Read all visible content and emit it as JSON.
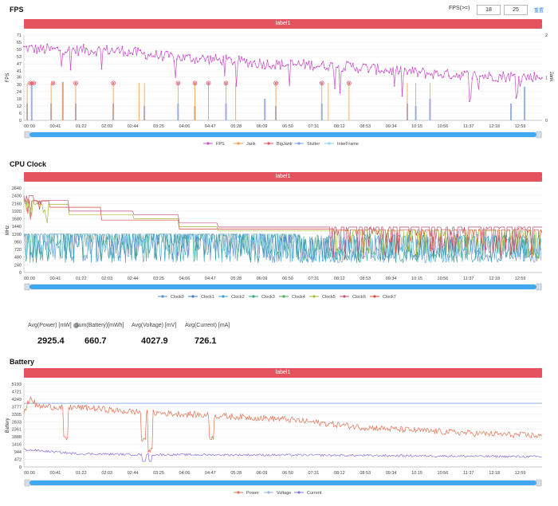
{
  "fps_section": {
    "title": "FPS",
    "threshold_label": "FPS(>=)",
    "threshold_values": [
      "18",
      "25"
    ],
    "reset_label": "重置",
    "label_bar": "label1"
  },
  "cpu_section": {
    "title": "CPU Clock",
    "label_bar": "label1"
  },
  "battery_section": {
    "title": "Battery",
    "label_bar": "label1"
  },
  "stats": [
    {
      "label": "Avg(Power) [mW]",
      "value": "2925.4",
      "help": true
    },
    {
      "label": "Sum(Battery)[mWh]",
      "value": "660.7",
      "help": false
    },
    {
      "label": "Avg(Voltage) [mV]",
      "value": "4027.9",
      "help": false
    },
    {
      "label": "Avg(Current) [mA]",
      "value": "726.1",
      "help": false
    }
  ],
  "x_ticks": [
    "00:00",
    "00:41",
    "01:22",
    "02:03",
    "02:44",
    "03:25",
    "04:06",
    "04:47",
    "05:28",
    "06:09",
    "06:50",
    "07:31",
    "08:12",
    "08:53",
    "09:34",
    "10:15",
    "10:56",
    "11:37",
    "12:18",
    "12:59"
  ],
  "chart_data": [
    {
      "type": "line",
      "title": "FPS",
      "ylabel": "FPS",
      "y2label": "Jank",
      "y_ticks": [
        0,
        6,
        12,
        18,
        24,
        30,
        36,
        41,
        47,
        53,
        59,
        65,
        71
      ],
      "y2_ticks": [
        0,
        1,
        2
      ],
      "ylim": [
        0,
        71
      ],
      "y2lim": [
        0,
        2
      ],
      "legend": [
        "FPS",
        "Jank",
        "BigJank",
        "Stutter",
        "InterFrame"
      ],
      "legend_position": "bottom",
      "colors": {
        "FPS": "#c94fc9",
        "Jank": "#f29b45",
        "BigJank": "#e8505b",
        "Stutter": "#7f9de0",
        "InterFrame": "#8fd2ee"
      },
      "fps_anchors": [
        [
          0,
          60
        ],
        [
          40,
          59
        ],
        [
          150,
          58
        ],
        [
          200,
          54
        ],
        [
          280,
          51
        ],
        [
          380,
          47
        ],
        [
          500,
          45
        ],
        [
          600,
          40
        ],
        [
          700,
          37
        ],
        [
          800,
          36
        ]
      ],
      "jank_times": [
        5,
        42,
        60,
        80,
        138,
        178,
        186,
        238,
        264,
        285,
        312,
        327,
        389,
        460,
        470,
        502,
        592,
        605,
        627
      ],
      "bigjank_times": [
        10,
        15,
        45,
        80,
        138,
        238,
        264,
        285,
        312,
        389,
        460,
        502
      ],
      "stutter_events": [
        [
          5,
          14
        ],
        [
          12,
          32
        ],
        [
          42,
          14
        ],
        [
          60,
          32
        ],
        [
          80,
          14
        ],
        [
          138,
          14
        ],
        [
          186,
          12
        ],
        [
          238,
          14
        ],
        [
          264,
          12
        ],
        [
          312,
          14
        ],
        [
          372,
          18
        ],
        [
          389,
          12
        ],
        [
          460,
          14
        ],
        [
          592,
          14
        ],
        [
          605,
          12
        ],
        [
          627,
          18
        ],
        [
          752,
          14
        ],
        [
          773,
          28
        ]
      ]
    },
    {
      "type": "line",
      "title": "CPU Clock",
      "ylabel": "MHz",
      "y_ticks": [
        0,
        240,
        480,
        720,
        960,
        1200,
        1440,
        1680,
        1920,
        2160,
        2400,
        2640
      ],
      "ylim": [
        0,
        2640
      ],
      "legend": [
        "Clock0",
        "Clock1",
        "Clock2",
        "Clock3",
        "Clock4",
        "Clock5",
        "Clock6",
        "Clock7"
      ],
      "legend_position": "bottom",
      "colors": [
        "#5b8fd6",
        "#4d79c7",
        "#3ba0c4",
        "#35a38a",
        "#4caf50",
        "#a7b83a",
        "#c0507c",
        "#d9493e"
      ],
      "big_core_steps": [
        [
          0,
          2400
        ],
        [
          15,
          2250
        ],
        [
          70,
          1920
        ],
        [
          170,
          1800
        ],
        [
          240,
          1550
        ],
        [
          300,
          1420
        ],
        [
          800,
          1420
        ]
      ],
      "prime_core_steps": [
        [
          0,
          2300
        ],
        [
          40,
          2100
        ],
        [
          120,
          1700
        ],
        [
          240,
          1420
        ],
        [
          480,
          1400
        ],
        [
          800,
          1300
        ]
      ],
      "little_core_range": [
        300,
        1200
      ]
    },
    {
      "type": "line",
      "title": "Battery",
      "ylabel": "Battery",
      "y_ticks": [
        0,
        472,
        944,
        1416,
        1888,
        2361,
        2833,
        3305,
        3777,
        4249,
        4721,
        5193
      ],
      "ylim": [
        0,
        5193
      ],
      "legend": [
        "Power",
        "Voltage",
        "Current"
      ],
      "legend_position": "bottom",
      "colors": {
        "Power": "#e4704f",
        "Voltage": "#8fb4e0",
        "Current": "#8a6fe0"
      },
      "voltage_level": 3990,
      "power_anchors": [
        [
          0,
          3300
        ],
        [
          10,
          4400
        ],
        [
          20,
          3800
        ],
        [
          100,
          3700
        ],
        [
          150,
          3500
        ],
        [
          300,
          3200
        ],
        [
          400,
          3000
        ],
        [
          520,
          2500
        ],
        [
          600,
          2300
        ],
        [
          700,
          2100
        ],
        [
          800,
          1950
        ]
      ],
      "power_dips": [
        [
          65,
          1600
        ],
        [
          185,
          1500
        ],
        [
          195,
          900
        ],
        [
          290,
          1700
        ]
      ],
      "current_anchors": [
        [
          0,
          1100
        ],
        [
          80,
          830
        ],
        [
          200,
          770
        ],
        [
          400,
          750
        ],
        [
          600,
          700
        ],
        [
          800,
          640
        ]
      ]
    }
  ]
}
